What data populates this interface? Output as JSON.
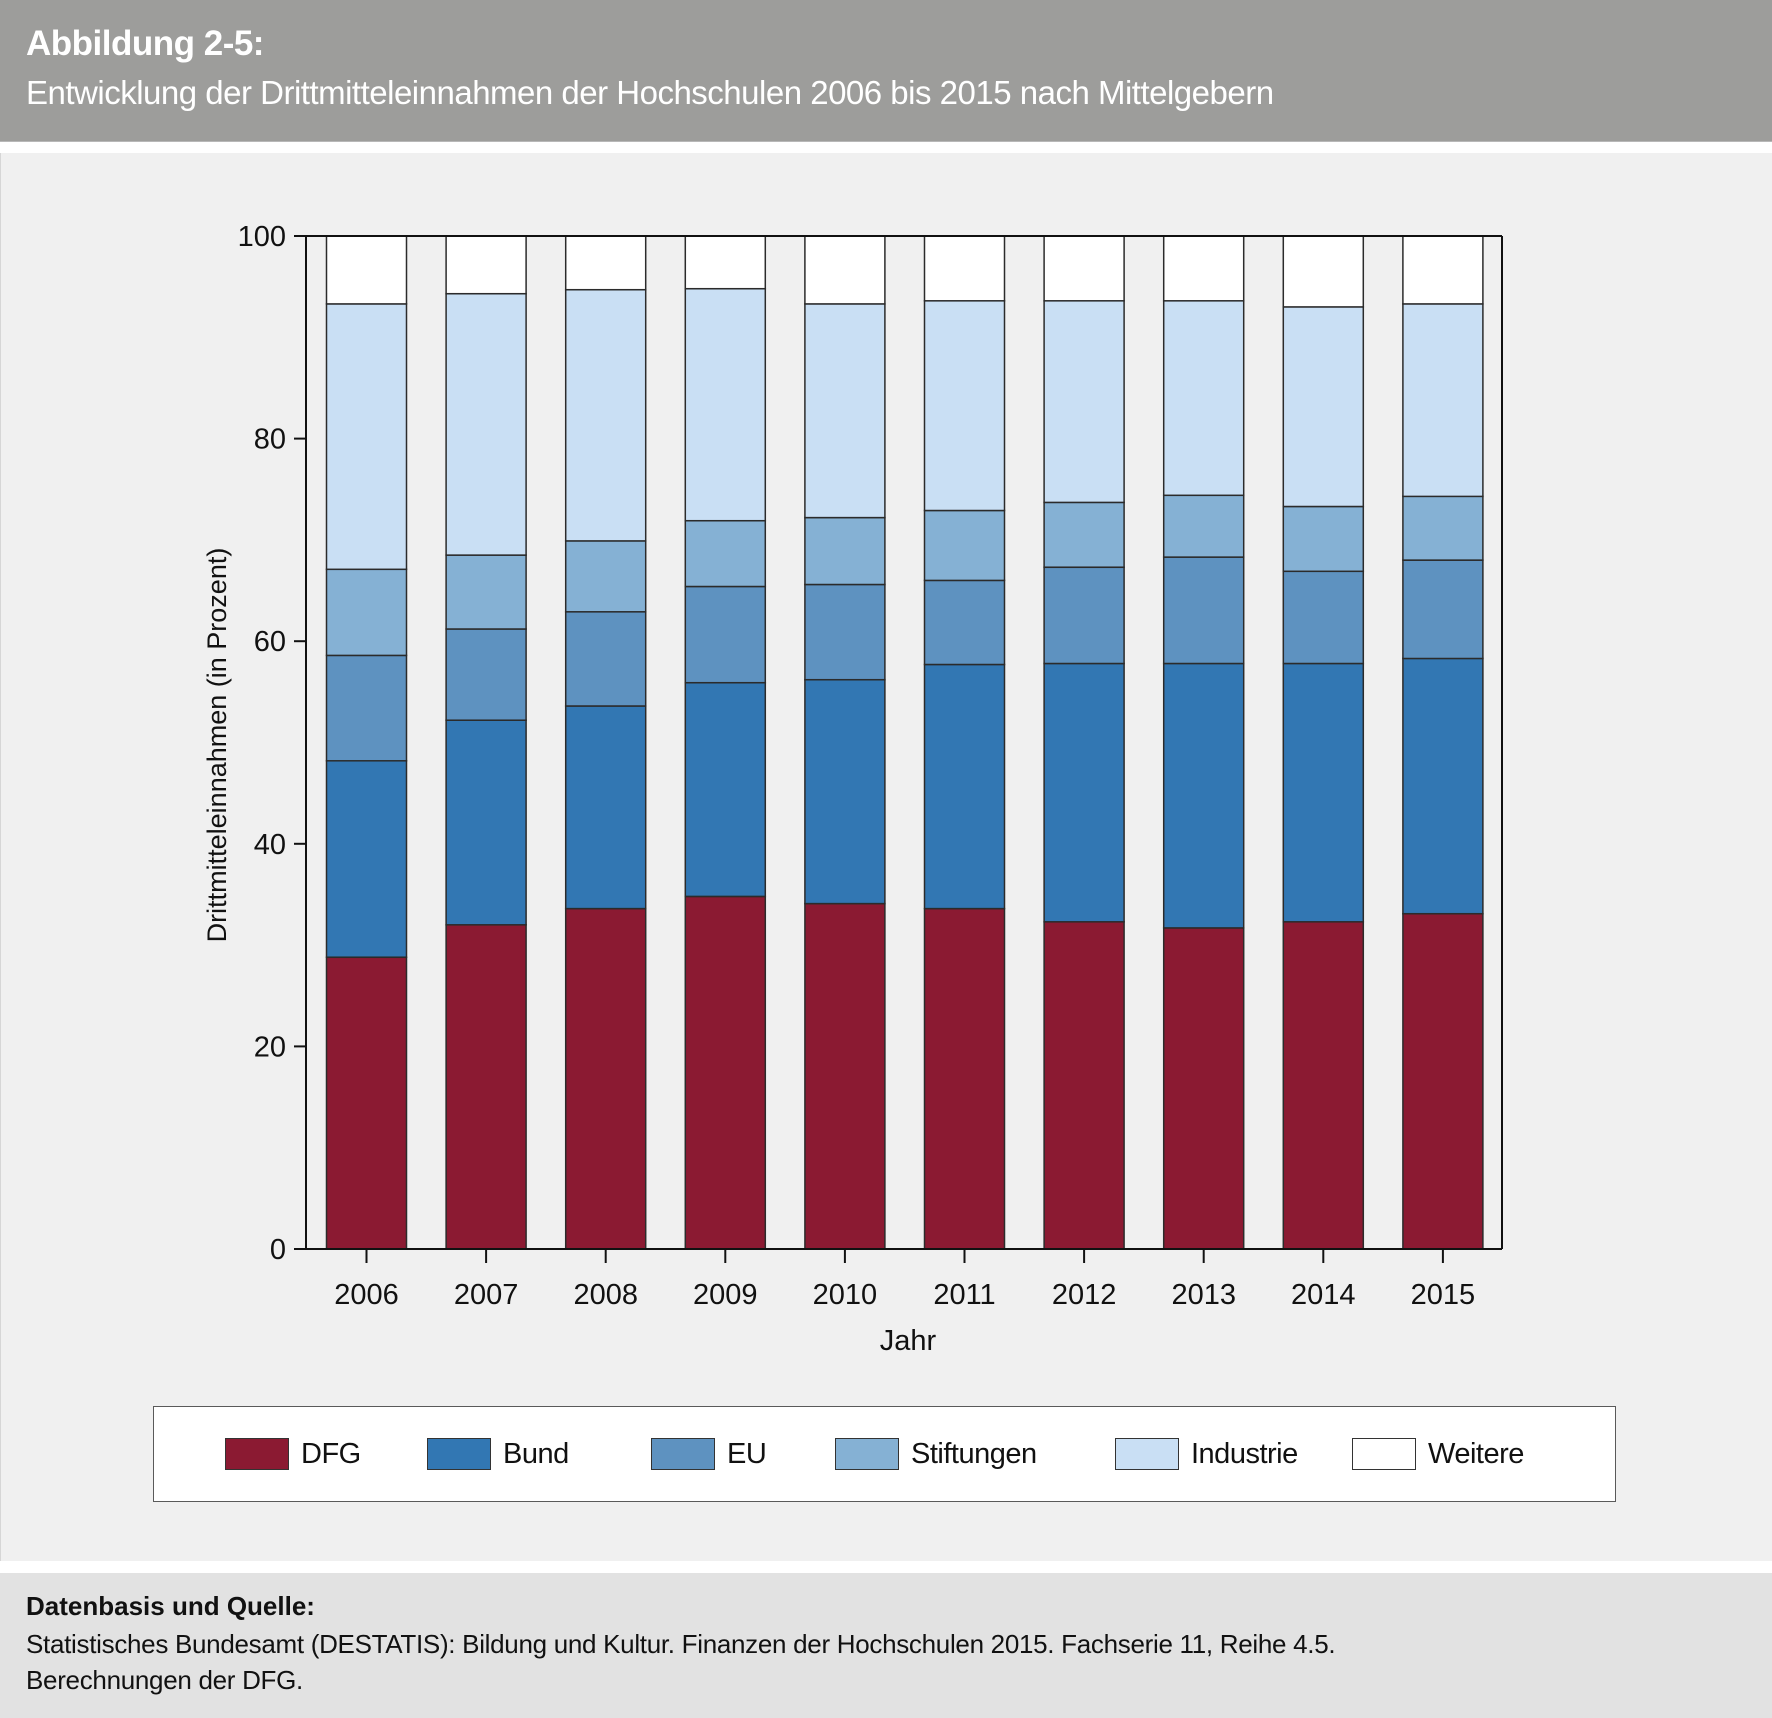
{
  "header": {
    "figure_label": "Abbildung 2-5:",
    "title": "Entwicklung der Drittmitteleinnahmen der Hochschulen 2006 bis 2015 nach Mittelgebern"
  },
  "footer": {
    "source_title": "Datenbasis und Quelle:",
    "lines": [
      "Statistisches Bundesamt (DESTATIS): Bildung und Kultur. Finanzen der Hochschulen 2015. Fachserie 11, Reihe 4.5.",
      "Berechnungen der DFG."
    ]
  },
  "chart_data": {
    "type": "bar",
    "stacked": true,
    "title": "Entwicklung der Drittmitteleinnahmen der Hochschulen 2006 bis 2015 nach Mittelgebern",
    "xlabel": "Jahr",
    "ylabel": "Drittmitteleinnahmen (in Prozent)",
    "ylim": [
      0,
      100
    ],
    "yticks": [
      0,
      20,
      40,
      60,
      80,
      100
    ],
    "grid": false,
    "legend_position": "bottom",
    "categories": [
      "2006",
      "2007",
      "2008",
      "2009",
      "2010",
      "2011",
      "2012",
      "2013",
      "2014",
      "2015"
    ],
    "series": [
      {
        "name": "DFG",
        "color": "#8b1a32",
        "values": [
          28.8,
          32.0,
          33.6,
          34.8,
          34.1,
          33.6,
          32.3,
          31.7,
          32.3,
          33.1
        ]
      },
      {
        "name": "Bund",
        "color": "#3277b3",
        "values": [
          19.4,
          20.2,
          20.0,
          21.1,
          22.1,
          24.1,
          25.5,
          26.1,
          25.5,
          25.2
        ]
      },
      {
        "name": "EU",
        "color": "#5e92c0",
        "values": [
          10.4,
          9.0,
          9.3,
          9.5,
          9.4,
          8.3,
          9.5,
          10.5,
          9.1,
          9.7
        ]
      },
      {
        "name": "Stiftungen",
        "color": "#85b1d4",
        "values": [
          8.5,
          7.3,
          7.0,
          6.5,
          6.6,
          6.9,
          6.4,
          6.1,
          6.4,
          6.3
        ]
      },
      {
        "name": "Industrie",
        "color": "#c9dff4",
        "values": [
          26.2,
          25.8,
          24.8,
          22.9,
          21.1,
          20.7,
          19.9,
          19.2,
          19.7,
          19.0
        ]
      },
      {
        "name": "Weitere",
        "color": "#ffffff",
        "values": [
          6.7,
          5.7,
          5.3,
          5.2,
          6.7,
          6.4,
          6.4,
          6.4,
          7.0,
          6.7
        ]
      }
    ]
  }
}
